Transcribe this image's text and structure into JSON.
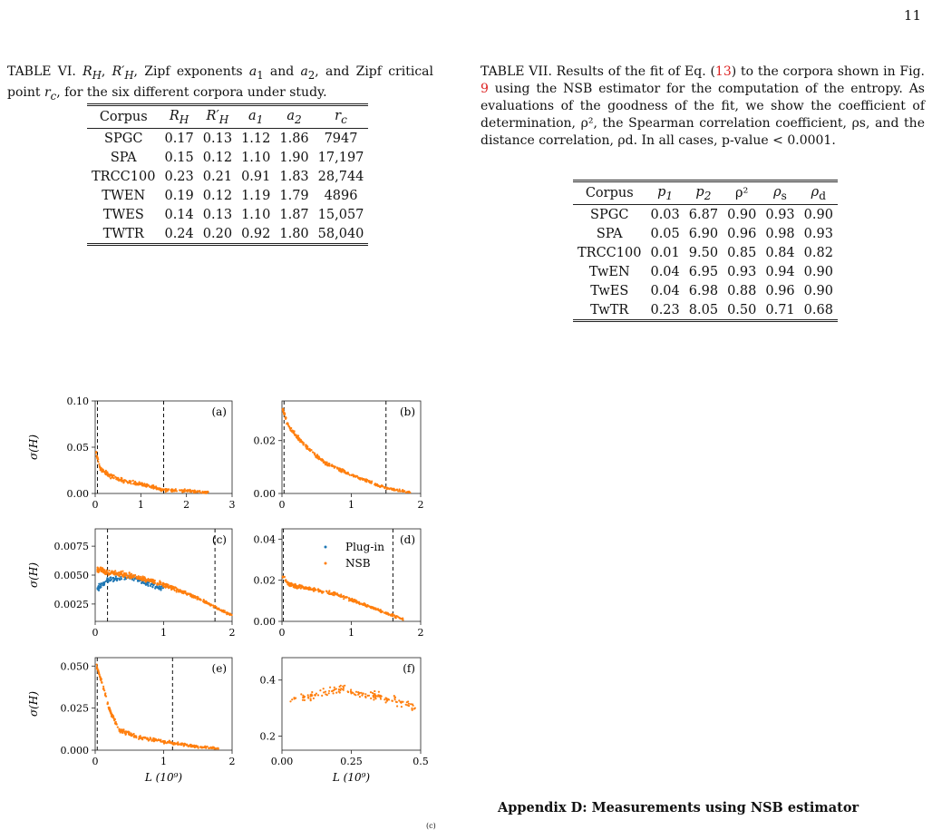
{
  "page_number": "11",
  "table6": {
    "caption_parts": [
      "TABLE VI. ",
      "R",
      "H",
      ", ",
      "R′",
      "H",
      ", Zipf exponents ",
      "a",
      "1",
      " and ",
      "a",
      "2",
      ", and Zipf critical point ",
      "r",
      "c",
      ", for the six different corpora under study."
    ],
    "caption_text": "TABLE VI. R_H, R′_H, Zipf exponents a_1 and a_2, and Zipf critical point r_c, for the six different corpora under study.",
    "headers": [
      "Corpus",
      "R_H",
      "R′_H",
      "a_1",
      "a_2",
      "r_c"
    ],
    "rows": [
      [
        "SPGC",
        "0.17",
        "0.13",
        "1.12",
        "1.86",
        "7947"
      ],
      [
        "SPA",
        "0.15",
        "0.12",
        "1.10",
        "1.90",
        "17,197"
      ],
      [
        "TRCC100",
        "0.23",
        "0.21",
        "0.91",
        "1.83",
        "28,744"
      ],
      [
        "TWEN",
        "0.19",
        "0.12",
        "1.19",
        "1.79",
        "4896"
      ],
      [
        "TWES",
        "0.14",
        "0.13",
        "1.10",
        "1.87",
        "15,057"
      ],
      [
        "TWTR",
        "0.24",
        "0.20",
        "0.92",
        "1.80",
        "58,040"
      ]
    ]
  },
  "table7": {
    "caption_a": "TABLE VII. Results of the fit of Eq. (",
    "eq_ref": "13",
    "caption_b": ") to the corpora shown in Fig. ",
    "fig_ref": "9",
    "caption_c": " using the NSB estimator for the computation of the entropy. As evaluations of the goodness of the fit, we show the coefficient of determination, ρ², the Spearman correlation coefficient, ρs, and the distance correlation, ρd. In all cases, p-value < 0.0001.",
    "headers": [
      "Corpus",
      "p_1",
      "p_2",
      "ρ²",
      "ρ_s",
      "ρ_d"
    ],
    "rows": [
      [
        "SPGC",
        "0.03",
        "6.87",
        "0.90",
        "0.93",
        "0.90"
      ],
      [
        "SPA",
        "0.05",
        "6.90",
        "0.96",
        "0.98",
        "0.93"
      ],
      [
        "TRCC100",
        "0.01",
        "9.50",
        "0.85",
        "0.84",
        "0.82"
      ],
      [
        "TwEN",
        "0.04",
        "6.95",
        "0.93",
        "0.94",
        "0.90"
      ],
      [
        "TwES",
        "0.04",
        "6.98",
        "0.88",
        "0.96",
        "0.90"
      ],
      [
        "TwTR",
        "0.23",
        "8.05",
        "0.50",
        "0.71",
        "0.68"
      ]
    ]
  },
  "figure": {
    "ylabel": "σ(H)",
    "xlabel": "L (10⁹)",
    "legend": [
      "Plug-in",
      "NSB"
    ],
    "colors": {
      "plugin": "#1f77b4",
      "nsb": "#ff7f0e"
    }
  },
  "chart_data": [
    {
      "type": "scatter",
      "panel": "(a)",
      "xlim": [
        0,
        3
      ],
      "ylim": [
        0,
        0.1
      ],
      "xticks": [
        "0",
        "1",
        "2",
        "3"
      ],
      "yticks": [
        "0.00",
        "0.05",
        "0.10"
      ],
      "ylabel": "σ(H)",
      "vlines": [
        0.05,
        1.5
      ],
      "series": [
        {
          "name": "NSB",
          "x": [
            0.02,
            0.1,
            0.3,
            0.6,
            1.0,
            1.5,
            2.0,
            2.5
          ],
          "y": [
            0.045,
            0.028,
            0.02,
            0.014,
            0.01,
            0.004,
            0.003,
            0.001
          ]
        }
      ]
    },
    {
      "type": "scatter",
      "panel": "(b)",
      "xlim": [
        0,
        2
      ],
      "ylim": [
        0,
        0.035
      ],
      "xticks": [
        "0",
        "1",
        "2"
      ],
      "yticks": [
        "0.00",
        "0.02"
      ],
      "vlines": [
        0.03,
        1.5
      ],
      "series": [
        {
          "name": "NSB",
          "x": [
            0.01,
            0.1,
            0.3,
            0.6,
            1.0,
            1.5,
            1.85
          ],
          "y": [
            0.032,
            0.025,
            0.019,
            0.012,
            0.007,
            0.002,
            0.0005
          ]
        }
      ]
    },
    {
      "type": "scatter",
      "panel": "(c)",
      "xlim": [
        0,
        2
      ],
      "ylim": [
        0.001,
        0.009
      ],
      "xticks": [
        "0",
        "1",
        "2"
      ],
      "yticks": [
        "0.0025",
        "0.0050",
        "0.0075"
      ],
      "ylabel": "σ(H)",
      "vlines": [
        0.18,
        1.75
      ],
      "series": [
        {
          "name": "Plug-in",
          "x": [
            0.03,
            0.2,
            0.5,
            0.8,
            1.0
          ],
          "y": [
            0.0038,
            0.0046,
            0.0048,
            0.0042,
            0.0038
          ]
        },
        {
          "name": "NSB",
          "x": [
            0.03,
            0.2,
            0.5,
            1.0,
            1.5,
            2.0
          ],
          "y": [
            0.0055,
            0.0052,
            0.005,
            0.0042,
            0.003,
            0.0015
          ]
        }
      ]
    },
    {
      "type": "scatter",
      "panel": "(d)",
      "xlim": [
        0,
        2
      ],
      "ylim": [
        0,
        0.045
      ],
      "xticks": [
        "0",
        "1",
        "2"
      ],
      "yticks": [
        "0.00",
        "0.02",
        "0.04"
      ],
      "vlines": [
        0.02,
        1.6
      ],
      "series": [
        {
          "name": "NSB",
          "x": [
            0.01,
            0.1,
            0.4,
            0.8,
            1.2,
            1.5,
            1.75
          ],
          "y": [
            0.022,
            0.018,
            0.016,
            0.013,
            0.008,
            0.004,
            0.001
          ]
        }
      ]
    },
    {
      "type": "scatter",
      "panel": "(e)",
      "xlim": [
        0,
        2
      ],
      "ylim": [
        0,
        0.055
      ],
      "xticks": [
        "0",
        "1",
        "2"
      ],
      "yticks": [
        "0.000",
        "0.025",
        "0.050"
      ],
      "ylabel": "σ(H)",
      "xlabel": "L (10⁹)",
      "vlines": [
        0.03,
        1.13
      ],
      "series": [
        {
          "name": "NSB",
          "x": [
            0.02,
            0.1,
            0.2,
            0.35,
            0.6,
            1.0,
            1.5,
            1.8
          ],
          "y": [
            0.05,
            0.04,
            0.025,
            0.012,
            0.008,
            0.005,
            0.002,
            0.001
          ]
        }
      ]
    },
    {
      "type": "scatter",
      "panel": "(f)",
      "xlim": [
        0,
        0.5
      ],
      "ylim": [
        0.15,
        0.48
      ],
      "xticks": [
        "0.00",
        "0.25",
        "0.5"
      ],
      "yticks": [
        "0.2",
        "0.4"
      ],
      "xlabel": "L (10⁹)",
      "series": [
        {
          "name": "NSB",
          "x": [
            0.02,
            0.1,
            0.2,
            0.3,
            0.4,
            0.48
          ],
          "y": [
            0.33,
            0.34,
            0.37,
            0.35,
            0.33,
            0.3
          ]
        }
      ]
    }
  ],
  "appendix_heading": "Appendix D: Measurements using NSB estimator",
  "bottom_mark": "(c)"
}
